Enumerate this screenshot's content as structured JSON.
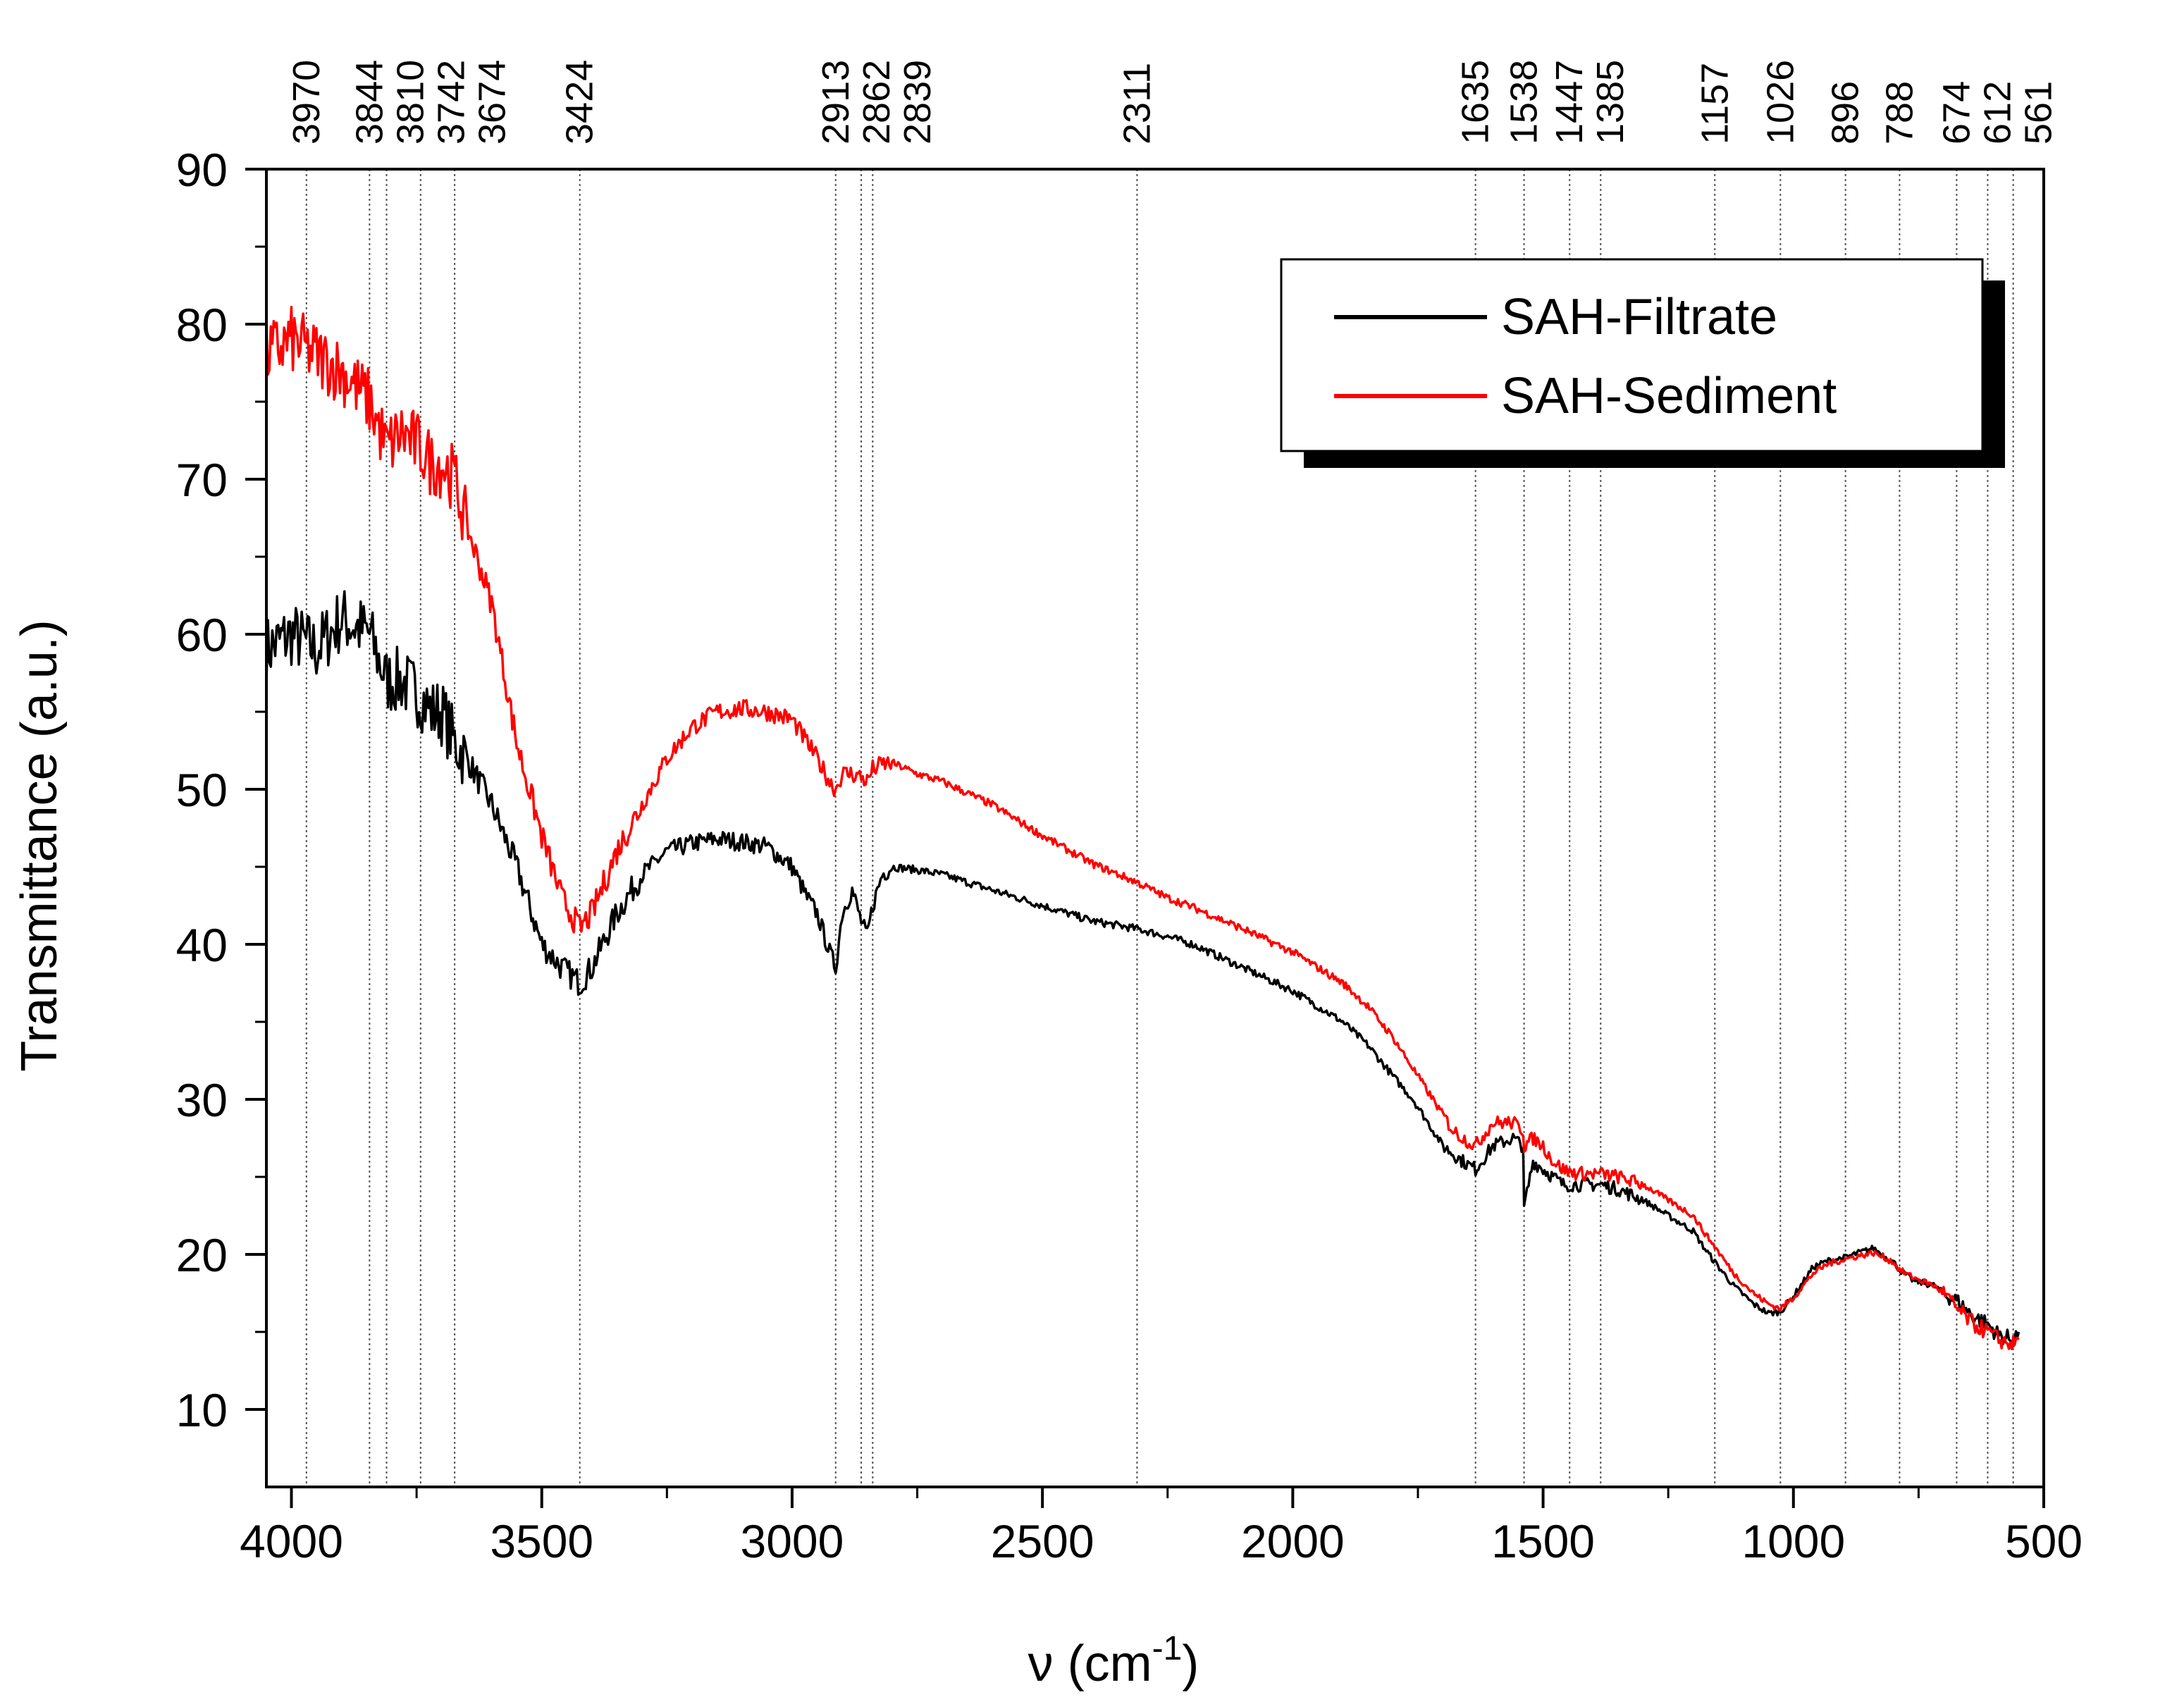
{
  "chart_data": {
    "type": "line",
    "title": "",
    "xlabel": "ν (cm",
    "xlabel_superscript": "-1",
    "xlabel_suffix": ")",
    "ylabel": "Transmittance (a.u.)",
    "xlim": [
      4050,
      500
    ],
    "ylim": [
      5,
      90
    ],
    "x_ticks": [
      4000,
      3500,
      3000,
      2500,
      2000,
      1500,
      1000,
      500
    ],
    "y_ticks": [
      10,
      20,
      30,
      40,
      50,
      60,
      70,
      80,
      90
    ],
    "grid": false,
    "peak_markers": [
      3970,
      3844,
      3810,
      3742,
      3674,
      3424,
      2913,
      2862,
      2839,
      2311,
      1635,
      1538,
      1447,
      1385,
      1157,
      1026,
      896,
      788,
      674,
      612,
      561
    ],
    "legend": {
      "position": "top-right"
    },
    "series": [
      {
        "name": "SAH-Filtrate",
        "color": "#000000",
        "x": [
          4050,
          4000,
          3950,
          3900,
          3844,
          3810,
          3780,
          3742,
          3720,
          3700,
          3674,
          3650,
          3600,
          3550,
          3500,
          3460,
          3424,
          3400,
          3350,
          3300,
          3250,
          3200,
          3150,
          3100,
          3050,
          3000,
          2970,
          2950,
          2925,
          2913,
          2900,
          2880,
          2862,
          2850,
          2839,
          2820,
          2800,
          2750,
          2700,
          2600,
          2500,
          2400,
          2311,
          2250,
          2200,
          2100,
          2000,
          1950,
          1900,
          1850,
          1800,
          1760,
          1720,
          1700,
          1680,
          1660,
          1635,
          1600,
          1560,
          1540,
          1538,
          1520,
          1500,
          1480,
          1460,
          1447,
          1420,
          1400,
          1385,
          1350,
          1300,
          1250,
          1200,
          1180,
          1157,
          1120,
          1080,
          1050,
          1026,
          1000,
          960,
          930,
          896,
          870,
          840,
          800,
          788,
          760,
          720,
          700,
          674,
          640,
          612,
          590,
          561,
          550
        ],
        "y": [
          59,
          60,
          59,
          61,
          60,
          57,
          57,
          56,
          55,
          55,
          53,
          52,
          49,
          45,
          40,
          38.5,
          37.5,
          38.5,
          42,
          44.5,
          46,
          46.5,
          46.8,
          46.6,
          46.3,
          45,
          43,
          42,
          39.5,
          38.5,
          42,
          43.5,
          41.5,
          40.5,
          42.5,
          44.5,
          45,
          44.8,
          44.5,
          43.5,
          42.5,
          41.5,
          41,
          40.5,
          40,
          38.5,
          37,
          36,
          35,
          33.5,
          31.5,
          30,
          28,
          27,
          26.5,
          26,
          25.5,
          27,
          27.5,
          27,
          23,
          26,
          25.5,
          25,
          24.5,
          24.5,
          24.5,
          24.5,
          24.5,
          24.2,
          23.5,
          22.5,
          21.5,
          20.5,
          19.5,
          18,
          16.8,
          16.2,
          16.3,
          17.3,
          19.2,
          19.6,
          19.8,
          20.1,
          20.4,
          19.5,
          19,
          18.3,
          18,
          17.5,
          17,
          16,
          15.5,
          14.8,
          14.5,
          15
        ]
      },
      {
        "name": "SAH-Sediment",
        "color": "#ff0000",
        "x": [
          4050,
          4000,
          3950,
          3900,
          3844,
          3810,
          3780,
          3742,
          3720,
          3700,
          3674,
          3650,
          3600,
          3550,
          3500,
          3460,
          3424,
          3400,
          3350,
          3300,
          3250,
          3200,
          3150,
          3100,
          3050,
          3000,
          2970,
          2950,
          2925,
          2913,
          2900,
          2880,
          2862,
          2850,
          2839,
          2820,
          2800,
          2750,
          2700,
          2600,
          2500,
          2400,
          2311,
          2250,
          2200,
          2100,
          2000,
          1950,
          1900,
          1850,
          1800,
          1760,
          1720,
          1700,
          1680,
          1660,
          1635,
          1600,
          1560,
          1540,
          1538,
          1520,
          1500,
          1480,
          1460,
          1447,
          1420,
          1400,
          1385,
          1350,
          1300,
          1250,
          1200,
          1180,
          1157,
          1120,
          1080,
          1050,
          1026,
          1000,
          960,
          930,
          896,
          870,
          840,
          800,
          788,
          760,
          720,
          700,
          674,
          640,
          612,
          590,
          561,
          550
        ],
        "y": [
          78,
          79,
          78,
          77,
          75,
          72,
          73,
          72,
          71,
          71,
          70,
          67,
          62,
          53,
          47,
          43,
          41,
          42,
          46,
          49,
          52,
          54,
          55,
          55.2,
          55,
          54.5,
          53,
          52,
          50.5,
          50,
          51,
          51,
          50.8,
          50.5,
          51.3,
          51.6,
          51.7,
          51,
          50.5,
          49,
          47,
          45.2,
          44,
          43,
          42.4,
          41,
          39.5,
          38.5,
          37.5,
          36,
          34,
          32,
          30,
          29,
          28,
          27.5,
          27,
          28.5,
          28.5,
          28,
          27,
          27.5,
          27,
          26,
          25.5,
          25.3,
          25.2,
          25.2,
          25.2,
          25,
          24.5,
          23.5,
          22.5,
          21.5,
          20.5,
          18.8,
          17.5,
          16.8,
          16.5,
          17.2,
          18.8,
          19.4,
          19.7,
          19.9,
          20.1,
          19.5,
          19,
          18.5,
          18,
          17.5,
          16.5,
          15.5,
          15,
          14.5,
          14.2,
          14.5
        ]
      }
    ]
  }
}
